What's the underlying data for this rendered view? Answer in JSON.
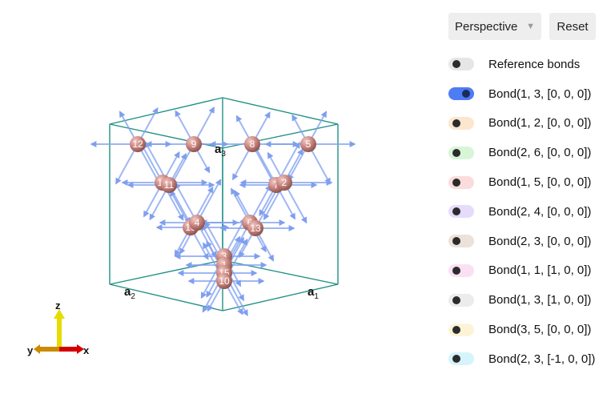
{
  "viewer": {
    "lattice_vectors": [
      {
        "base": "a",
        "sub": "1"
      },
      {
        "base": "a",
        "sub": "2"
      },
      {
        "base": "a",
        "sub": "3"
      }
    ],
    "atom_labels": [
      "1",
      "2",
      "3",
      "4",
      "5",
      "6",
      "7",
      "8",
      "9",
      "10",
      "11",
      "12",
      "13",
      "14",
      "15",
      "16"
    ],
    "axes": {
      "x": "x",
      "y": "y",
      "z": "z"
    },
    "colors": {
      "cell_edges": "#1f9186",
      "atom": "#cf8f88",
      "bond_arrow": "#7f9fef",
      "axis_x": "#d40000",
      "axis_y": "#cc8a00",
      "axis_z": "#e6dc00"
    }
  },
  "controls": {
    "projection": {
      "selected": "Perspective",
      "icon": "caret-down-icon"
    },
    "reset_label": "Reset",
    "toggles": [
      {
        "label": "Reference bonds",
        "on": false,
        "color": "#e6e6e6"
      },
      {
        "label": "Bond(1, 3, [0, 0, 0])",
        "on": true,
        "color": "#4d7cf5"
      },
      {
        "label": "Bond(1, 2, [0, 0, 0])",
        "on": false,
        "color": "#fde6d0"
      },
      {
        "label": "Bond(2, 6, [0, 0, 0])",
        "on": false,
        "color": "#d8f5d8"
      },
      {
        "label": "Bond(1, 5, [0, 0, 0])",
        "on": false,
        "color": "#fbdcdc"
      },
      {
        "label": "Bond(2, 4, [0, 0, 0])",
        "on": false,
        "color": "#e6dcfa"
      },
      {
        "label": "Bond(2, 3, [0, 0, 0])",
        "on": false,
        "color": "#ece2da"
      },
      {
        "label": "Bond(1, 1, [1, 0, 0])",
        "on": false,
        "color": "#fbe0f4"
      },
      {
        "label": "Bond(1, 3, [1, 0, 0])",
        "on": false,
        "color": "#ececec"
      },
      {
        "label": "Bond(3, 5, [0, 0, 0])",
        "on": false,
        "color": "#fdf4d8"
      },
      {
        "label": "Bond(2, 3, [-1, 0, 0])",
        "on": false,
        "color": "#d6f4fb"
      }
    ]
  }
}
